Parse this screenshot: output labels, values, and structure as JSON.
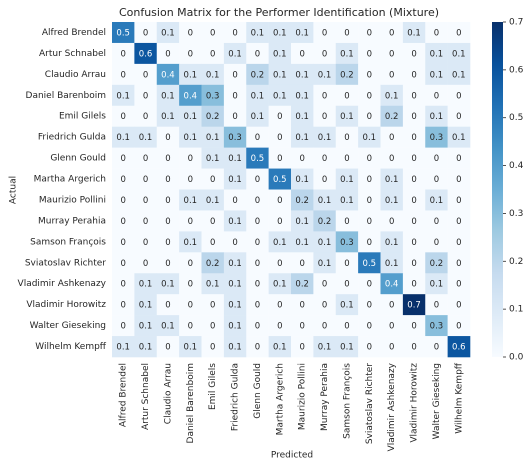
{
  "chart_data": {
    "type": "heatmap",
    "title": "Confusion Matrix for the Performer Identification (Mixture)",
    "xlabel": "Predicted",
    "ylabel": "Actual",
    "colormap": "Blues",
    "x_categories": [
      "Alfred Brendel",
      "Artur Schnabel",
      "Claudio Arrau",
      "Daniel Barenboim",
      "Emil Gilels",
      "Friedrich Gulda",
      "Glenn Gould",
      "Martha Argerich",
      "Maurizio Pollini",
      "Murray Perahia",
      "Samson François",
      "Sviatoslav Richter",
      "Vladimir Ashkenazy",
      "Vladimir Horowitz",
      "Walter Gieseking",
      "Wilhelm Kempff"
    ],
    "y_categories": [
      "Alfred Brendel",
      "Artur Schnabel",
      "Claudio Arrau",
      "Daniel Barenboim",
      "Emil Gilels",
      "Friedrich Gulda",
      "Glenn Gould",
      "Martha Argerich",
      "Maurizio Pollini",
      "Murray Perahia",
      "Samson François",
      "Sviatoslav Richter",
      "Vladimir Ashkenazy",
      "Vladimir Horowitz",
      "Walter Gieseking",
      "Wilhelm Kempff"
    ],
    "values": [
      [
        0.5,
        0,
        0.1,
        0,
        0,
        0,
        0.1,
        0.1,
        0.1,
        0,
        0,
        0,
        0,
        0.1,
        0,
        0
      ],
      [
        0,
        0.6,
        0,
        0,
        0,
        0.1,
        0,
        0.1,
        0,
        0,
        0.1,
        0,
        0,
        0,
        0.1,
        0.1
      ],
      [
        0,
        0,
        0.4,
        0.1,
        0.1,
        0,
        0.2,
        0.1,
        0.1,
        0.1,
        0.2,
        0,
        0,
        0,
        0.1,
        0.1
      ],
      [
        0.1,
        0,
        0.1,
        0.4,
        0.3,
        0,
        0.1,
        0.1,
        0.1,
        0,
        0,
        0,
        0.1,
        0,
        0,
        0
      ],
      [
        0,
        0,
        0.1,
        0.1,
        0.2,
        0,
        0.1,
        0,
        0.1,
        0,
        0.1,
        0,
        0.2,
        0,
        0.1,
        0
      ],
      [
        0.1,
        0.1,
        0,
        0.1,
        0.1,
        0.3,
        0,
        0,
        0.1,
        0.1,
        0,
        0.1,
        0,
        0,
        0.3,
        0.1
      ],
      [
        0,
        0,
        0,
        0,
        0.1,
        0.1,
        0.5,
        0,
        0,
        0,
        0,
        0,
        0,
        0,
        0,
        0
      ],
      [
        0,
        0,
        0,
        0,
        0,
        0.1,
        0,
        0.5,
        0.1,
        0,
        0.1,
        0,
        0.1,
        0,
        0,
        0
      ],
      [
        0,
        0,
        0,
        0.1,
        0.1,
        0,
        0,
        0,
        0.2,
        0.1,
        0.1,
        0,
        0.1,
        0,
        0.1,
        0
      ],
      [
        0,
        0,
        0,
        0,
        0,
        0.1,
        0,
        0,
        0.1,
        0.2,
        0,
        0,
        0,
        0,
        0,
        0
      ],
      [
        0,
        0,
        0,
        0.1,
        0,
        0,
        0,
        0.1,
        0.1,
        0.1,
        0.3,
        0,
        0.1,
        0,
        0,
        0
      ],
      [
        0,
        0,
        0,
        0,
        0.2,
        0.1,
        0,
        0,
        0,
        0.1,
        0,
        0.5,
        0.1,
        0,
        0.2,
        0
      ],
      [
        0,
        0.1,
        0.1,
        0,
        0.1,
        0.1,
        0,
        0.1,
        0.2,
        0,
        0,
        0,
        0.4,
        0,
        0.1,
        0
      ],
      [
        0,
        0.1,
        0,
        0,
        0,
        0.1,
        0,
        0,
        0,
        0,
        0.1,
        0,
        0,
        0.7,
        0,
        0
      ],
      [
        0,
        0.1,
        0.1,
        0,
        0,
        0.1,
        0,
        0,
        0,
        0,
        0,
        0,
        0,
        0,
        0.3,
        0
      ],
      [
        0.1,
        0.1,
        0,
        0.1,
        0,
        0.1,
        0,
        0.1,
        0,
        0.1,
        0.1,
        0,
        0,
        0,
        0,
        0.6
      ]
    ],
    "zlim": [
      0,
      0.7
    ],
    "zticks": [
      {
        "value": 0,
        "label": "0.0"
      },
      0.1,
      0.2,
      0.3,
      0.4,
      0.5,
      0.6,
      0.7
    ]
  }
}
